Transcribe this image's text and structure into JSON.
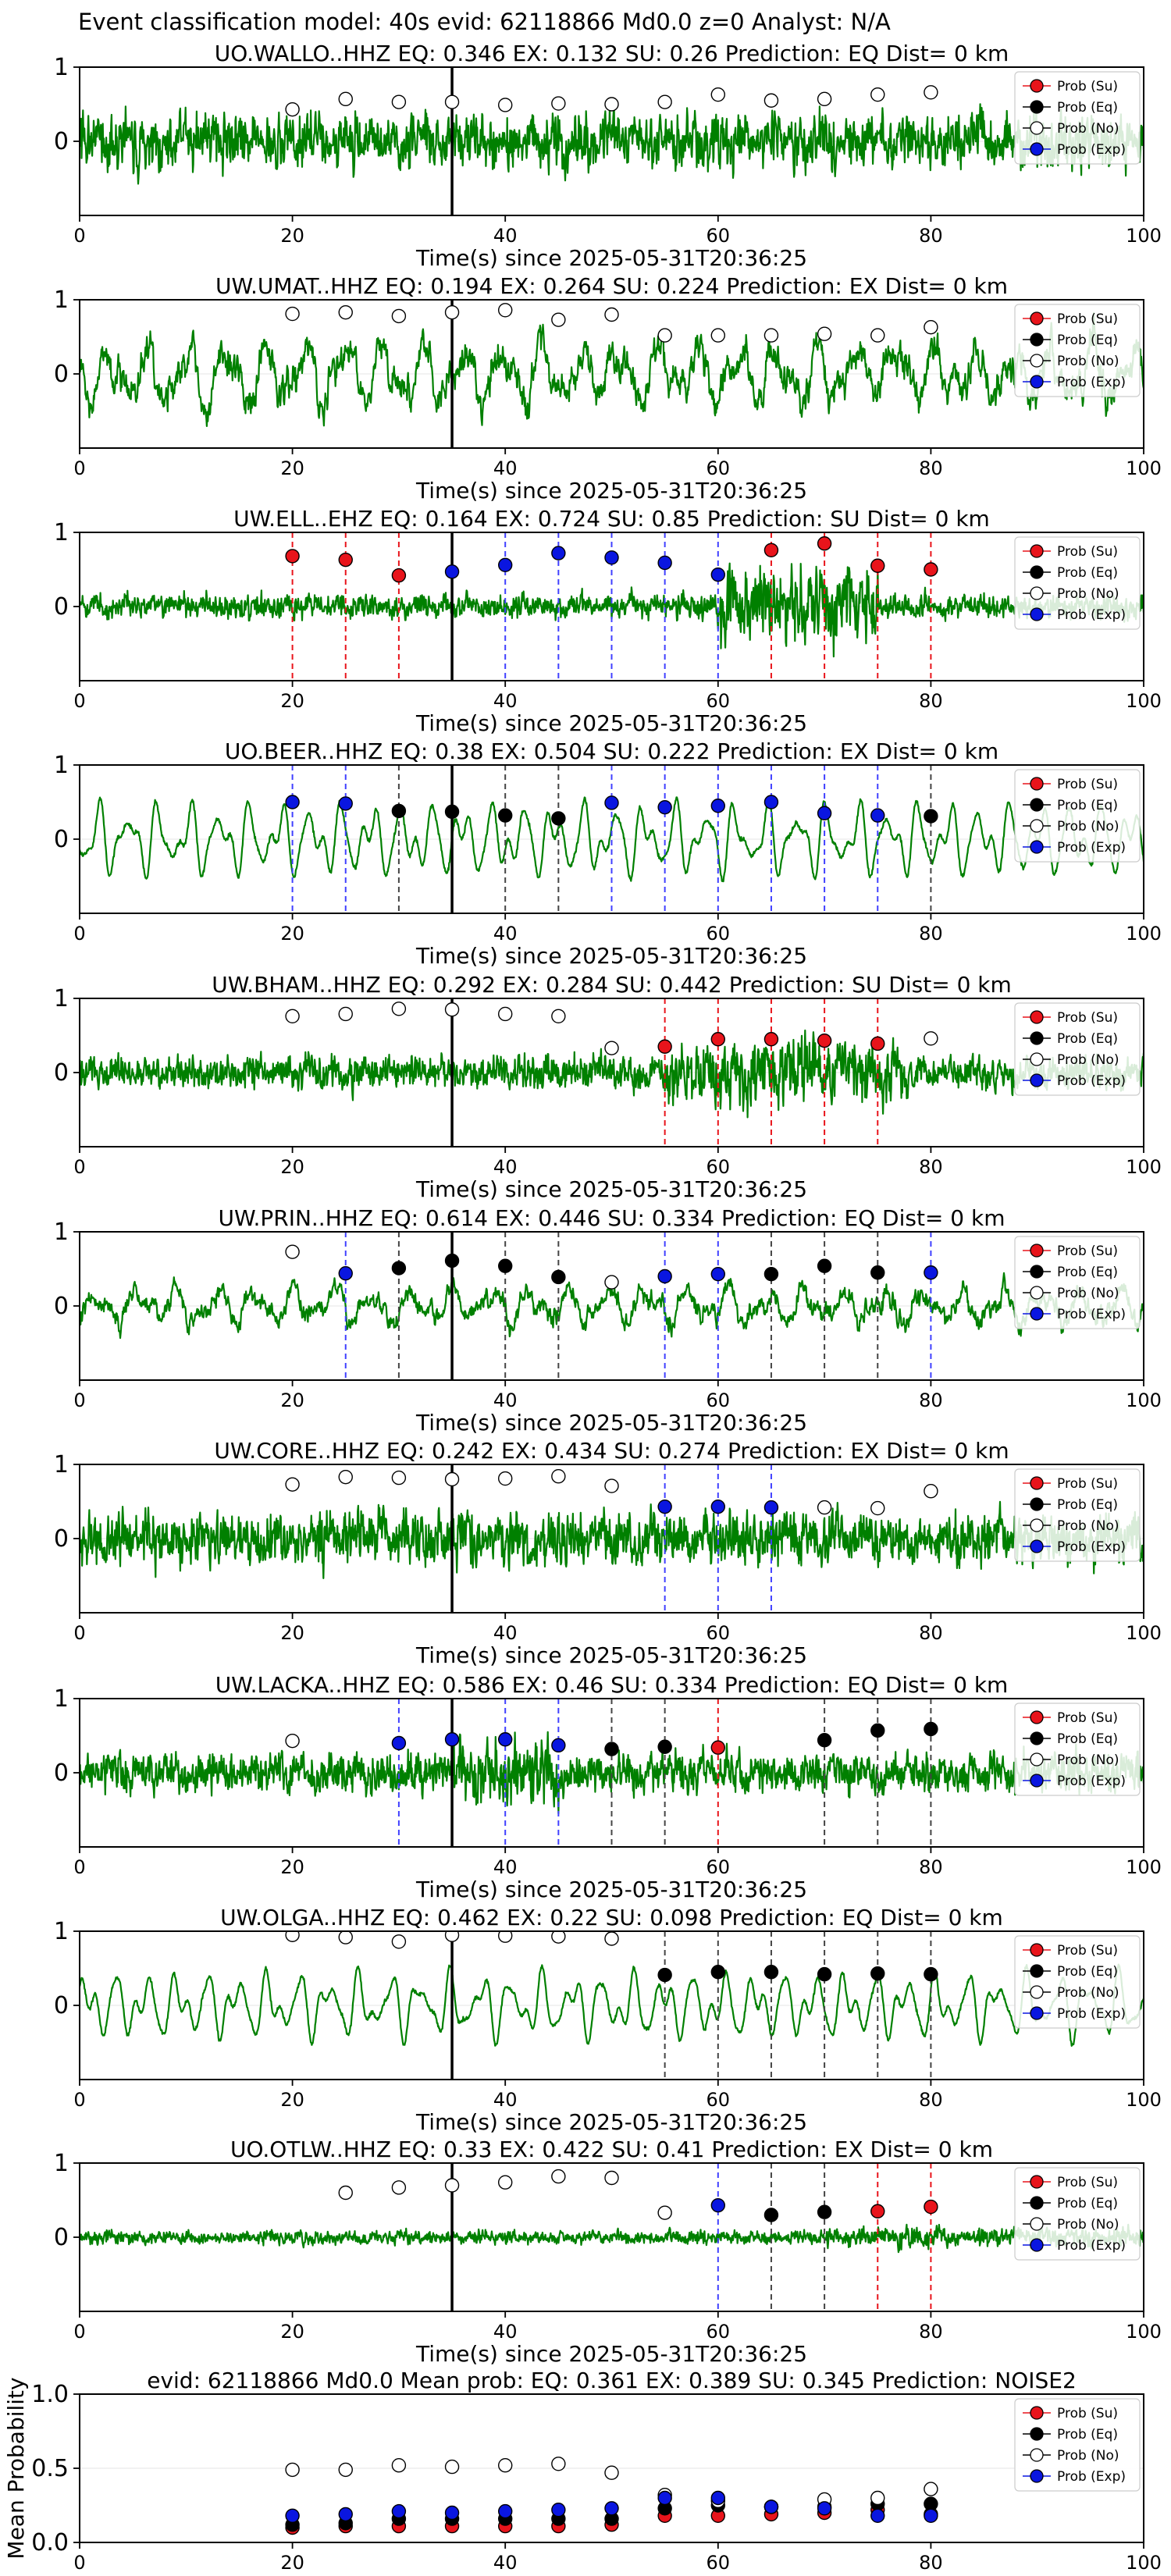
{
  "suptitle": "Event classification model: 40s evid: 62118866 Md0.0 z=0 Analyst: N/A",
  "xlabel": "Time(s) since 2025-05-31T20:36:25",
  "legend": [
    "Prob (Su)",
    "Prob (Eq)",
    "Prob (No)",
    "Prob (Exp)"
  ],
  "colors": {
    "wave": "#008000",
    "su": "#e8141b",
    "eq": "#000000",
    "no": "#ffffff",
    "ex": "#0a16e0",
    "su_line": "#e8141b",
    "eq_line": "#444444",
    "ex_line": "#4040ff"
  },
  "chart_data": [
    {
      "type": "line",
      "title": "UO.WALLO..HHZ   EQ: 0.346  EX: 0.132  SU: 0.26   Prediction: EQ    Dist= 0 km",
      "xlim": [
        0,
        100
      ],
      "ylim": [
        -1,
        1
      ],
      "xticks": [
        0,
        20,
        40,
        60,
        80,
        100
      ],
      "yticks": [
        0,
        1
      ],
      "pick": 35,
      "wave": {
        "style": "noisy",
        "amp": 0.42,
        "seed": 1,
        "burst": null
      },
      "times": [
        20,
        25,
        30,
        35,
        40,
        45,
        50,
        55,
        60,
        65,
        70,
        75,
        80
      ],
      "classes": [
        "no",
        "no",
        "no",
        "no",
        "no",
        "no",
        "no",
        "no",
        "no",
        "no",
        "no",
        "no",
        "no"
      ],
      "probs": [
        0.43,
        0.57,
        0.53,
        0.53,
        0.49,
        0.51,
        0.5,
        0.53,
        0.63,
        0.55,
        0.57,
        0.63,
        0.66
      ]
    },
    {
      "type": "line",
      "title": "UW.UMAT..HHZ   EQ: 0.194  EX: 0.264  SU: 0.224   Prediction: EX    Dist= 0 km",
      "xlim": [
        0,
        100
      ],
      "ylim": [
        -1,
        1
      ],
      "xticks": [
        0,
        20,
        40,
        60,
        80,
        100
      ],
      "yticks": [
        0,
        1
      ],
      "pick": 35,
      "wave": {
        "style": "mixed",
        "amp": 0.55,
        "seed": 2,
        "burst": null
      },
      "times": [
        20,
        25,
        30,
        35,
        40,
        45,
        50,
        55,
        60,
        65,
        70,
        75,
        80
      ],
      "classes": [
        "no",
        "no",
        "no",
        "no",
        "no",
        "no",
        "no",
        "no",
        "no",
        "no",
        "no",
        "no",
        "no"
      ],
      "probs": [
        0.81,
        0.83,
        0.78,
        0.83,
        0.86,
        0.73,
        0.8,
        0.52,
        0.52,
        0.52,
        0.54,
        0.52,
        0.63
      ]
    },
    {
      "type": "line",
      "title": "UW.ELL..EHZ   EQ: 0.164  EX: 0.724  SU: 0.85   Prediction: SU    Dist= 0 km",
      "xlim": [
        0,
        100
      ],
      "ylim": [
        -1,
        1
      ],
      "xticks": [
        0,
        20,
        40,
        60,
        80,
        100
      ],
      "yticks": [
        0,
        1
      ],
      "pick": 35,
      "wave": {
        "style": "noisy",
        "amp": 0.18,
        "seed": 3,
        "burst": [
          60,
          75,
          0.6
        ]
      },
      "times": [
        20,
        25,
        30,
        35,
        40,
        45,
        50,
        55,
        60,
        65,
        70,
        75,
        80
      ],
      "classes": [
        "su",
        "su",
        "su",
        "ex",
        "ex",
        "ex",
        "ex",
        "ex",
        "ex",
        "su",
        "su",
        "su",
        "su"
      ],
      "probs": [
        0.68,
        0.63,
        0.42,
        0.47,
        0.56,
        0.72,
        0.66,
        0.59,
        0.43,
        0.76,
        0.85,
        0.55,
        0.5
      ]
    },
    {
      "type": "line",
      "title": "UO.BEER..HHZ   EQ: 0.38  EX: 0.504  SU: 0.222   Prediction: EX    Dist= 0 km",
      "xlim": [
        0,
        100
      ],
      "ylim": [
        -1,
        1
      ],
      "xticks": [
        0,
        20,
        40,
        60,
        80,
        100
      ],
      "yticks": [
        0,
        1
      ],
      "pick": 35,
      "wave": {
        "style": "smooth",
        "amp": 0.55,
        "seed": 4,
        "burst": null
      },
      "times": [
        20,
        25,
        30,
        35,
        40,
        45,
        50,
        55,
        60,
        65,
        70,
        75,
        80
      ],
      "classes": [
        "ex",
        "ex",
        "eq",
        "eq",
        "eq",
        "eq",
        "ex",
        "ex",
        "ex",
        "ex",
        "ex",
        "ex",
        "eq"
      ],
      "probs": [
        0.5,
        0.48,
        0.38,
        0.37,
        0.32,
        0.28,
        0.49,
        0.43,
        0.45,
        0.5,
        0.35,
        0.32,
        0.31
      ]
    },
    {
      "type": "line",
      "title": "UW.BHAM..HHZ   EQ: 0.292  EX: 0.284  SU: 0.442   Prediction: SU    Dist= 0 km",
      "xlim": [
        0,
        100
      ],
      "ylim": [
        -1,
        1
      ],
      "xticks": [
        0,
        20,
        40,
        60,
        80,
        100
      ],
      "yticks": [
        0,
        1
      ],
      "pick": 35,
      "wave": {
        "style": "noisy",
        "amp": 0.25,
        "seed": 5,
        "burst": [
          55,
          78,
          0.5
        ]
      },
      "times": [
        20,
        25,
        30,
        35,
        40,
        45,
        50,
        55,
        60,
        65,
        70,
        75,
        80
      ],
      "classes": [
        "no",
        "no",
        "no",
        "no",
        "no",
        "no",
        "no",
        "su",
        "su",
        "su",
        "su",
        "su",
        "no"
      ],
      "probs": [
        0.76,
        0.79,
        0.86,
        0.85,
        0.79,
        0.76,
        0.33,
        0.35,
        0.45,
        0.45,
        0.43,
        0.39,
        0.46
      ]
    },
    {
      "type": "line",
      "title": "UW.PRIN..HHZ   EQ: 0.614  EX: 0.446  SU: 0.334   Prediction: EQ    Dist= 0 km",
      "xlim": [
        0,
        100
      ],
      "ylim": [
        -1,
        1
      ],
      "xticks": [
        0,
        20,
        40,
        60,
        80,
        100
      ],
      "yticks": [
        0,
        1
      ],
      "pick": 35,
      "wave": {
        "style": "mixed",
        "amp": 0.32,
        "seed": 6,
        "burst": null
      },
      "times": [
        20,
        25,
        30,
        35,
        40,
        45,
        50,
        55,
        60,
        65,
        70,
        75,
        80
      ],
      "classes": [
        "no",
        "ex",
        "eq",
        "eq",
        "eq",
        "eq",
        "no",
        "ex",
        "ex",
        "eq",
        "eq",
        "eq",
        "ex"
      ],
      "probs": [
        0.73,
        0.44,
        0.51,
        0.61,
        0.54,
        0.39,
        0.32,
        0.4,
        0.43,
        0.43,
        0.54,
        0.45,
        0.45
      ]
    },
    {
      "type": "line",
      "title": "UW.CORE..HHZ   EQ: 0.242  EX: 0.434  SU: 0.274   Prediction: EX    Dist= 0 km",
      "xlim": [
        0,
        100
      ],
      "ylim": [
        -1,
        1
      ],
      "xticks": [
        0,
        20,
        40,
        60,
        80,
        100
      ],
      "yticks": [
        0,
        1
      ],
      "pick": 35,
      "wave": {
        "style": "noisy",
        "amp": 0.4,
        "seed": 7,
        "burst": null
      },
      "times": [
        20,
        25,
        30,
        35,
        40,
        45,
        50,
        55,
        60,
        65,
        70,
        75,
        80
      ],
      "classes": [
        "no",
        "no",
        "no",
        "no",
        "no",
        "no",
        "no",
        "ex",
        "ex",
        "ex",
        "no",
        "no",
        "no"
      ],
      "probs": [
        0.73,
        0.83,
        0.82,
        0.8,
        0.81,
        0.84,
        0.71,
        0.43,
        0.43,
        0.42,
        0.42,
        0.41,
        0.64
      ]
    },
    {
      "type": "line",
      "title": "UW.LACKA..HHZ   EQ: 0.586  EX: 0.46  SU: 0.334   Prediction: EQ    Dist= 0 km",
      "xlim": [
        0,
        100
      ],
      "ylim": [
        -1,
        1
      ],
      "xticks": [
        0,
        20,
        40,
        60,
        80,
        100
      ],
      "yticks": [
        0,
        1
      ],
      "pick": 35,
      "wave": {
        "style": "noisy",
        "amp": 0.3,
        "seed": 8,
        "burst": [
          35,
          45,
          0.55
        ]
      },
      "times": [
        20,
        25,
        30,
        35,
        40,
        45,
        50,
        55,
        60,
        65,
        70,
        75,
        80
      ],
      "classes": [
        "no",
        "no",
        "ex",
        "ex",
        "ex",
        "ex",
        "eq",
        "eq",
        "su",
        "no",
        "eq",
        "eq",
        "eq"
      ],
      "probs": [
        0.43,
        null,
        0.4,
        0.45,
        0.45,
        0.37,
        0.32,
        0.35,
        0.34,
        null,
        0.44,
        0.57,
        0.59
      ]
    },
    {
      "type": "line",
      "title": "UW.OLGA..HHZ   EQ: 0.462  EX: 0.22  SU: 0.098   Prediction: EQ    Dist= 0 km",
      "xlim": [
        0,
        100
      ],
      "ylim": [
        -1,
        1
      ],
      "xticks": [
        0,
        20,
        40,
        60,
        80,
        100
      ],
      "yticks": [
        0,
        1
      ],
      "pick": 35,
      "wave": {
        "style": "smooth",
        "amp": 0.5,
        "seed": 9,
        "burst": null
      },
      "times": [
        20,
        25,
        30,
        35,
        40,
        45,
        50,
        55,
        60,
        65,
        70,
        75,
        80
      ],
      "classes": [
        "no",
        "no",
        "no",
        "no",
        "no",
        "no",
        "no",
        "eq",
        "eq",
        "eq",
        "eq",
        "eq",
        "eq"
      ],
      "probs": [
        0.95,
        0.92,
        0.86,
        0.95,
        0.94,
        0.93,
        0.9,
        0.41,
        0.45,
        0.45,
        0.42,
        0.43,
        0.42
      ]
    },
    {
      "type": "line",
      "title": "UO.OTLW..HHZ   EQ: 0.33  EX: 0.422  SU: 0.41   Prediction: EX    Dist= 0 km",
      "xlim": [
        0,
        100
      ],
      "ylim": [
        -1,
        1
      ],
      "xticks": [
        0,
        20,
        40,
        60,
        80,
        100
      ],
      "yticks": [
        0,
        1
      ],
      "pick": 35,
      "wave": {
        "style": "noisy",
        "amp": 0.1,
        "seed": 10,
        "burst": [
          70,
          100,
          0.15
        ]
      },
      "times": [
        25,
        30,
        35,
        40,
        45,
        50,
        55,
        60,
        65,
        70,
        75,
        80
      ],
      "classes": [
        "no",
        "no",
        "no",
        "no",
        "no",
        "no",
        "no",
        "ex",
        "eq",
        "eq",
        "su",
        "su"
      ],
      "probs": [
        0.6,
        0.67,
        0.7,
        0.74,
        0.82,
        0.8,
        0.33,
        0.43,
        0.3,
        0.34,
        0.35,
        0.41
      ]
    },
    {
      "type": "scatter",
      "title": "evid: 62118866  Md0.0   Mean prob:   EQ: 0.361  EX: 0.389  SU: 0.345   Prediction: NOISE2",
      "ylabel": "Mean Probability",
      "xlim": [
        0,
        100
      ],
      "ylim": [
        0,
        1
      ],
      "xticks": [
        0,
        20,
        40,
        60,
        80,
        100
      ],
      "yticks": [
        0.0,
        0.5,
        1.0
      ],
      "times": [
        20,
        25,
        30,
        35,
        40,
        45,
        50,
        55,
        60,
        65,
        70,
        75,
        80
      ],
      "series": [
        {
          "class": "su",
          "values": [
            0.1,
            0.11,
            0.11,
            0.11,
            0.11,
            0.11,
            0.12,
            0.18,
            0.18,
            0.19,
            0.2,
            0.22,
            0.19
          ]
        },
        {
          "class": "eq",
          "values": [
            0.12,
            0.13,
            0.16,
            0.16,
            0.16,
            0.16,
            0.16,
            0.23,
            0.25,
            0.24,
            0.24,
            0.26,
            0.26
          ]
        },
        {
          "class": "no",
          "values": [
            0.49,
            0.49,
            0.52,
            0.51,
            0.52,
            0.53,
            0.47,
            0.32,
            0.28,
            0.24,
            0.29,
            0.3,
            0.36
          ]
        },
        {
          "class": "ex",
          "values": [
            0.18,
            0.19,
            0.21,
            0.2,
            0.21,
            0.22,
            0.23,
            0.3,
            0.3,
            0.24,
            0.23,
            0.18,
            0.18
          ]
        }
      ]
    }
  ]
}
